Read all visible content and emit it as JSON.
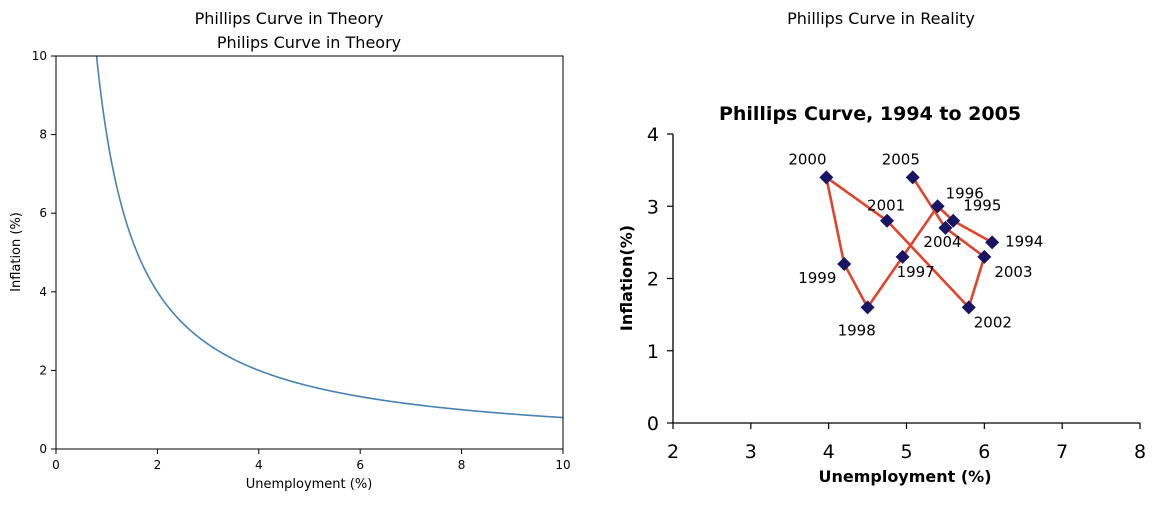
{
  "figure": {
    "left_panel_title": "Phillips Curve in Theory",
    "right_panel_title": "Phillips Curve in Reality"
  },
  "chart_data": [
    {
      "type": "line",
      "title": "Philips Curve in Theory",
      "xlabel": "Unemployment (%)",
      "ylabel": "Inflation (%)",
      "xlim": [
        0,
        10
      ],
      "ylim": [
        0,
        10
      ],
      "xticks": [
        "0",
        "2",
        "4",
        "6",
        "8",
        "10"
      ],
      "yticks": [
        "0",
        "2",
        "4",
        "6",
        "8",
        "10"
      ],
      "grid": false,
      "curve": "y = 8 / x",
      "x": [
        0.8,
        1,
        1.25,
        1.5,
        2,
        2.5,
        3,
        4,
        5,
        6,
        7,
        8,
        9,
        10
      ],
      "y": [
        10,
        8,
        6.4,
        5.33,
        4,
        3.2,
        2.67,
        2,
        1.6,
        1.33,
        1.14,
        1,
        0.89,
        0.8
      ],
      "line_color": "#4682b4"
    },
    {
      "type": "scatter",
      "title": "Phillips Curve, 1994 to 2005",
      "xlabel": "Unemployment (%)",
      "ylabel": "Inflation(%)",
      "xlim": [
        2,
        8
      ],
      "ylim": [
        0,
        4
      ],
      "xticks": [
        "2",
        "3",
        "4",
        "5",
        "6",
        "7",
        "8"
      ],
      "yticks": [
        "0",
        "1",
        "2",
        "3",
        "4"
      ],
      "grid": false,
      "connected": true,
      "marker_color": "#1a1464",
      "line_color": "#e0442a",
      "points": [
        {
          "label": "1994",
          "x": 6.1,
          "y": 2.5
        },
        {
          "label": "1995",
          "x": 5.6,
          "y": 2.8
        },
        {
          "label": "1996",
          "x": 5.4,
          "y": 3.0
        },
        {
          "label": "1997",
          "x": 4.95,
          "y": 2.3
        },
        {
          "label": "1998",
          "x": 4.5,
          "y": 1.6
        },
        {
          "label": "1999",
          "x": 4.2,
          "y": 2.2
        },
        {
          "label": "2000",
          "x": 3.97,
          "y": 3.4
        },
        {
          "label": "2001",
          "x": 4.75,
          "y": 2.8
        },
        {
          "label": "2002",
          "x": 5.8,
          "y": 1.6
        },
        {
          "label": "2003",
          "x": 6.0,
          "y": 2.3
        },
        {
          "label": "2004",
          "x": 5.5,
          "y": 2.7
        },
        {
          "label": "2005",
          "x": 5.08,
          "y": 3.4
        }
      ]
    }
  ]
}
